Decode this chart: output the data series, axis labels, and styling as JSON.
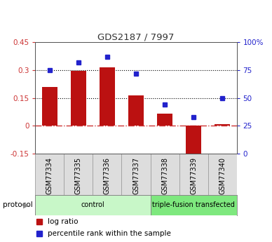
{
  "title": "GDS2187 / 7997",
  "samples": [
    "GSM77334",
    "GSM77335",
    "GSM77336",
    "GSM77337",
    "GSM77338",
    "GSM77339",
    "GSM77340"
  ],
  "log_ratio": [
    0.21,
    0.295,
    0.315,
    0.163,
    0.065,
    -0.195,
    0.01
  ],
  "percentile_rank": [
    75,
    82,
    87,
    72,
    44,
    33,
    50
  ],
  "groups": [
    {
      "label": "control",
      "indices": [
        0,
        1,
        2,
        3
      ],
      "color": "#c8f7c8"
    },
    {
      "label": "triple-fusion transfected",
      "indices": [
        4,
        5,
        6
      ],
      "color": "#7ee87e"
    }
  ],
  "bar_color": "#bb1111",
  "dot_color": "#2222cc",
  "ylim_left": [
    -0.15,
    0.45
  ],
  "ylim_right": [
    0,
    100
  ],
  "yticks_left": [
    -0.15,
    0.0,
    0.15,
    0.3,
    0.45
  ],
  "ytick_labels_left": [
    "-0.15",
    "0",
    "0.15",
    "0.3",
    "0.45"
  ],
  "yticks_right": [
    0,
    25,
    50,
    75,
    100
  ],
  "ytick_labels_right": [
    "0",
    "25",
    "50",
    "75",
    "100%"
  ],
  "hlines": [
    0.0,
    0.15,
    0.3
  ],
  "hline_styles": [
    "dashdot",
    "dotted",
    "dotted"
  ],
  "hline_colors": [
    "#cc3333",
    "#000000",
    "#000000"
  ],
  "protocol_label": "protocol",
  "legend_items": [
    "log ratio",
    "percentile rank within the sample"
  ],
  "legend_colors": [
    "#bb1111",
    "#2222cc"
  ]
}
